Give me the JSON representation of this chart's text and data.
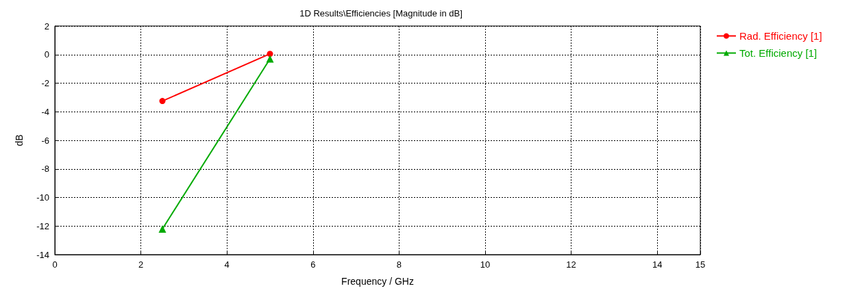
{
  "chart_data": {
    "type": "line",
    "title": "1D Results\\Efficiencies [Magnitude in dB]",
    "xlabel": "Frequency / GHz",
    "ylabel": "dB",
    "x": [
      2.5,
      5
    ],
    "series": [
      {
        "name": "Rad. Efficiency [1]",
        "color": "#ff0000",
        "marker": "circle",
        "values": [
          -3.25,
          0.05
        ]
      },
      {
        "name": "Tot. Efficiency [1]",
        "color": "#00aa00",
        "marker": "triangle",
        "values": [
          -12.2,
          -0.3
        ]
      }
    ],
    "xlim": [
      0,
      15
    ],
    "xticks": [
      0,
      2,
      4,
      6,
      8,
      10,
      12,
      14,
      15
    ],
    "ylim": [
      -14,
      2
    ],
    "yticks": [
      -14,
      -12,
      -10,
      -8,
      -6,
      -4,
      -2,
      0,
      2
    ],
    "grid": true,
    "legend": "top right",
    "line_style": "solid"
  }
}
